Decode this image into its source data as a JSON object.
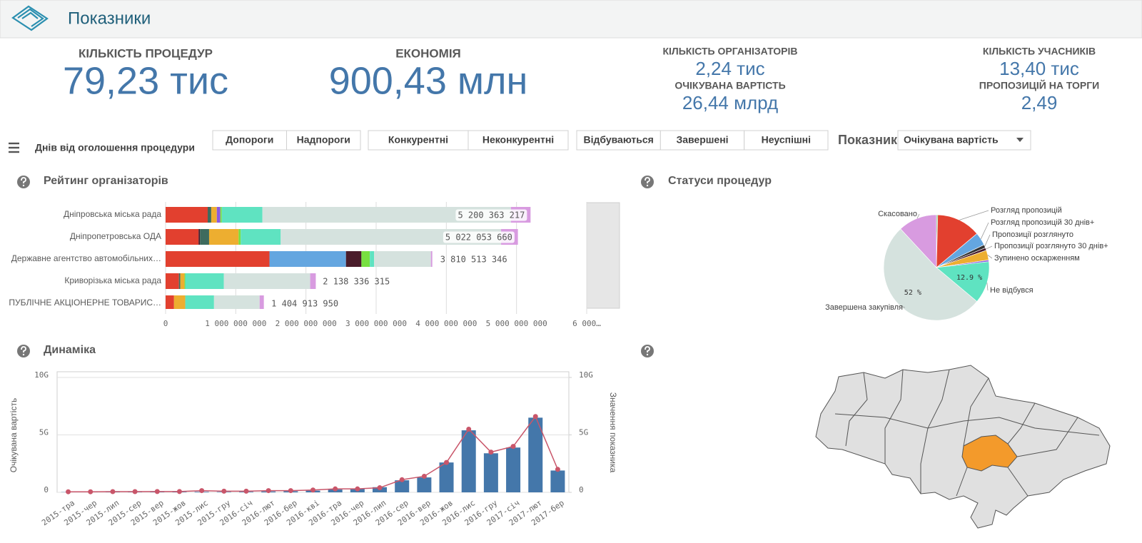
{
  "header": {
    "title": "Показники"
  },
  "kpis": [
    {
      "label": "КІЛЬКІСТЬ ПРОЦЕДУР",
      "value": "79,23 тис"
    },
    {
      "label": "ЕКОНОМІЯ",
      "value": "900,43 млн"
    },
    {
      "label": "КІЛЬКІСТЬ ОРГАНІЗАТОРІВ",
      "value": "2,24 тис"
    },
    {
      "label": "ОЧІКУВАНА ВАРТІСТЬ",
      "value": "26,44 млрд"
    },
    {
      "label": "КІЛЬКІСТЬ УЧАСНИКІВ",
      "value": "13,40 тис"
    },
    {
      "label": "ПРОПОЗИЦІЙ НА ТОРГИ",
      "value": "2,49"
    }
  ],
  "filters": {
    "label": "Днів від оголошення процедури",
    "button_groups": [
      [
        "Допороги",
        "Надпороги"
      ],
      [
        "Конкурентні",
        "Неконкурентні"
      ],
      [
        "Відбуваються",
        "Завершені",
        "Неуспішні"
      ]
    ],
    "selector_label": "Показник",
    "selector_value": "Очікувана вартість"
  },
  "chart_data": [
    {
      "type": "bar",
      "orientation": "horizontal",
      "stacked": true,
      "title": "Рейтинг організаторів",
      "categories": [
        "Дніпровська міська рада",
        "Дніпропетровська ОДА",
        "Державне агентство автомобільних…",
        "Криворізька міська рада",
        "ПУБЛІЧНЕ АКЦІОНЕРНЕ ТОВАРИС…"
      ],
      "series": [
        {
          "color": "#e2402f",
          "values": [
            600000000,
            470000000,
            1480000000,
            190000000,
            120000000
          ]
        },
        {
          "color": "#64a6e0",
          "values": [
            0,
            0,
            1090000000,
            0,
            0
          ]
        },
        {
          "color": "#4a1c2a",
          "values": [
            0,
            20000000,
            220000000,
            0,
            0
          ]
        },
        {
          "color": "#3e6b5e",
          "values": [
            50000000,
            130000000,
            0,
            20000000,
            0
          ]
        },
        {
          "color": "#edae30",
          "values": [
            80000000,
            420000000,
            0,
            60000000,
            160000000
          ]
        },
        {
          "color": "#8a5be0",
          "values": [
            50000000,
            0,
            0,
            0,
            0
          ]
        },
        {
          "color": "#78e040",
          "values": [
            20000000,
            30000000,
            120000000,
            10000000,
            0
          ]
        },
        {
          "color": "#5fe3c1",
          "values": [
            580000000,
            570000000,
            60000000,
            550000000,
            410000000
          ]
        },
        {
          "color": "#d5e2de",
          "values": [
            3540000000,
            3140000000,
            810000000,
            1230000000,
            650000000
          ]
        },
        {
          "color": "#d89be0",
          "values": [
            280000000,
            240000000,
            20000000,
            80000000,
            60000000
          ]
        }
      ],
      "totals": [
        5200363217,
        5022053660,
        3810513346,
        2138336315,
        1404913950
      ],
      "total_labels": [
        "5 200 363 217",
        "5 022 053 660",
        "3 810 513 346",
        "2 138 336 315",
        "1 404 913 950"
      ],
      "xlim": [
        0,
        6000000000
      ],
      "xticks": [
        0,
        {
          "value": 1000000000,
          "label": "1 000 000 000"
        },
        {
          "value": 2000000000,
          "label": "2 000 000 000"
        },
        {
          "value": 3000000000,
          "label": "3 000 000 000"
        },
        {
          "value": 4000000000,
          "label": "4 000 000 000"
        },
        {
          "value": 5000000000,
          "label": "5 000 000 000"
        },
        {
          "value": 6000000000,
          "label": "6 000…"
        }
      ],
      "grid": true
    },
    {
      "type": "pie",
      "title": "Статуси процедур",
      "categories": [
        null,
        "Розгляд пропозицій",
        "Розгляд пропозицій 30 днів+",
        "Пропозиції розглянуто",
        "Пропозиції розглянуто 30 днів+",
        "Зупинено оскарженням",
        null,
        "Не відбувся",
        "Завершена закупівля",
        "Скасовано"
      ],
      "values": [
        0.4,
        13.5,
        4,
        1,
        0.8,
        3,
        0.5,
        12.9,
        52,
        11.9
      ],
      "value_labels": [
        null,
        null,
        null,
        null,
        null,
        null,
        null,
        "12.9 %",
        "52 %",
        null
      ],
      "colors": [
        "#7cc576",
        "#e2402f",
        "#64a6e0",
        "#333333",
        "#4a1c2a",
        "#edae30",
        "#8a5be0",
        "#5fe3c1",
        "#d5e2de",
        "#d89be0"
      ]
    },
    {
      "type": "combo",
      "title": "Динаміка",
      "categories": [
        "2015-тра",
        "2015-чер",
        "2015-лип",
        "2015-сер",
        "2015-вер",
        "2015-жов",
        "2015-лис",
        "2015-гру",
        "2016-січ",
        "2016-лют",
        "2016-бер",
        "2016-кві",
        "2016-тра",
        "2016-чер",
        "2016-лип",
        "2016-сер",
        "2016-вер",
        "2016-жов",
        "2016-лис",
        "2016-гру",
        "2017-січ",
        "2017-лют",
        "2017-бер"
      ],
      "series": [
        {
          "type": "bar",
          "color": "#4477aa",
          "values": [
            0.02,
            0.02,
            0.03,
            0.03,
            0.03,
            0.04,
            0.05,
            0.04,
            0.05,
            0.08,
            0.1,
            0.15,
            0.25,
            0.3,
            0.45,
            1.05,
            1.3,
            2.6,
            5.4,
            3.4,
            3.9,
            6.5,
            1.9
          ]
        },
        {
          "type": "line",
          "color": "#c9566a",
          "axis": "y2",
          "values": [
            0.05,
            0.05,
            0.06,
            0.06,
            0.07,
            0.07,
            0.15,
            0.1,
            0.1,
            0.15,
            0.15,
            0.2,
            0.3,
            0.3,
            0.4,
            1.1,
            1.4,
            2.6,
            5.5,
            3.5,
            4.0,
            6.6,
            2.0
          ]
        }
      ],
      "ylabel": "Очікувана вартість",
      "y2label": "Значення показника",
      "ylim": [
        0,
        10
      ],
      "yticks": [
        0,
        {
          "value": 5,
          "label": "5G"
        },
        {
          "value": 10,
          "label": "10G"
        }
      ],
      "y2lim": [
        0,
        10
      ],
      "y2ticks": [
        0,
        {
          "value": 5,
          "label": "5G"
        },
        {
          "value": 10,
          "label": "10G"
        }
      ],
      "grid": true
    }
  ]
}
